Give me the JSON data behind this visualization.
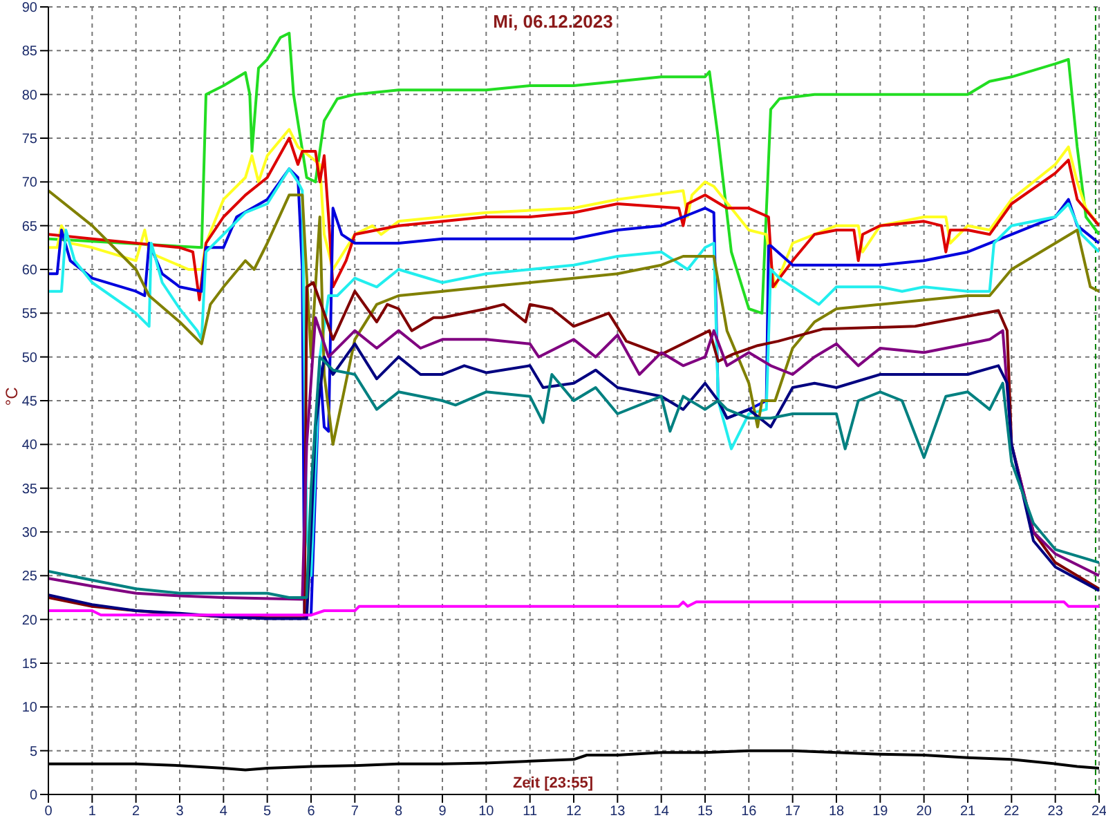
{
  "chart_data": {
    "type": "line",
    "title": "Mi, 06.12.2023",
    "xlabel": "Zeit [23:55]",
    "ylabel": "°C",
    "xlim": [
      0,
      24
    ],
    "ylim": [
      0,
      90
    ],
    "xticks": [
      0,
      1,
      2,
      3,
      4,
      5,
      6,
      7,
      8,
      9,
      10,
      11,
      12,
      13,
      14,
      15,
      16,
      17,
      18,
      19,
      20,
      21,
      22,
      23,
      24
    ],
    "yticks": [
      0,
      5,
      10,
      15,
      20,
      25,
      30,
      35,
      40,
      45,
      50,
      55,
      60,
      65,
      70,
      75,
      80,
      85,
      90
    ],
    "grid": true,
    "marker": "none",
    "line_style": "solid",
    "ref_lines": [
      {
        "axis": "x",
        "value": 23.92,
        "color": "#008000",
        "line_style": "dashed"
      }
    ],
    "series": [
      {
        "color": "#22dd22",
        "x": [
          0,
          3.5,
          3.6,
          4.0,
          4.5,
          4.6,
          4.65,
          4.8,
          5.0,
          5.3,
          5.5,
          5.6,
          5.9,
          6.1,
          6.3,
          6.6,
          7,
          8,
          9,
          10,
          11,
          12,
          13,
          14,
          15,
          15.1,
          15.3,
          15.6,
          16.0,
          16.3,
          16.5,
          16.7,
          17.5,
          18,
          19,
          20,
          21,
          21.5,
          22,
          23,
          23.3,
          23.5,
          23.7,
          24
        ],
        "values": [
          63.5,
          62.5,
          80,
          81,
          82.5,
          80,
          73.5,
          83,
          84,
          86.5,
          87,
          80,
          70.5,
          70,
          77,
          79.5,
          80,
          80.5,
          80.5,
          80.5,
          81,
          81,
          81.5,
          82,
          82,
          82.6,
          75,
          62,
          55.5,
          55,
          78.3,
          79.5,
          80,
          80,
          80,
          80,
          80,
          81.5,
          82,
          83.5,
          84,
          74,
          66,
          64
        ]
      },
      {
        "color": "#ffff22",
        "x": [
          0,
          0.2,
          0.3,
          0.5,
          1,
          2,
          2.2,
          2.3,
          2.5,
          3.2,
          3.5,
          3.6,
          4,
          4.5,
          4.65,
          4.8,
          5,
          5.5,
          5.7,
          6.2,
          6.3,
          6.5,
          7,
          7.4,
          7.6,
          8,
          10,
          12,
          13,
          14.5,
          14.6,
          14.7,
          15,
          15.2,
          16,
          16.4,
          16.6,
          17,
          17.5,
          18,
          18.5,
          18.6,
          19,
          20,
          20.5,
          20.6,
          21,
          21.5,
          22,
          22.5,
          23,
          23.3,
          23.5,
          23.7,
          24
        ],
        "values": [
          62.5,
          62.5,
          65,
          63,
          62.5,
          61,
          64.5,
          62,
          61.5,
          60,
          60,
          63,
          68,
          70.5,
          73,
          70,
          73,
          76,
          74,
          72,
          64,
          60,
          64,
          65,
          64,
          65.5,
          66.5,
          67,
          68,
          69,
          66,
          68.5,
          70,
          69.5,
          64.5,
          64,
          58,
          63,
          64,
          65,
          65,
          62,
          65,
          66,
          66,
          63,
          65,
          64.5,
          68,
          70,
          72,
          74,
          70,
          67,
          65
        ]
      },
      {
        "color": "#dd0000",
        "x": [
          0,
          1,
          2,
          3,
          3.3,
          3.45,
          3.6,
          4,
          4.5,
          5,
          5.5,
          5.7,
          5.8,
          6.1,
          6.2,
          6.3,
          6.4,
          6.5,
          6.8,
          7,
          8,
          10,
          11,
          12,
          13,
          14.4,
          14.5,
          14.6,
          15,
          15.5,
          16,
          16.45,
          16.55,
          17,
          17.5,
          18,
          18.4,
          18.5,
          18.6,
          19,
          20,
          20.4,
          20.5,
          20.6,
          21,
          21.5,
          22,
          23,
          23.3,
          23.5,
          24
        ],
        "values": [
          64,
          63.5,
          63,
          62.5,
          62,
          56.5,
          63,
          66,
          68.5,
          70.5,
          75,
          72,
          73.5,
          73.5,
          70,
          73,
          66,
          58,
          61,
          64,
          65,
          66,
          66,
          66.5,
          67.5,
          67,
          65,
          67.5,
          68.5,
          67,
          67,
          66,
          58,
          61,
          64,
          64.5,
          64.5,
          61,
          64,
          65,
          65.5,
          65,
          62,
          64.5,
          64.5,
          64,
          67.5,
          71,
          72.5,
          68,
          65
        ]
      },
      {
        "color": "#0000dd",
        "x": [
          0,
          0.2,
          0.3,
          0.5,
          1,
          2,
          2.2,
          2.3,
          2.6,
          3,
          3.5,
          3.6,
          4,
          4.3,
          5,
          5.5,
          5.7,
          5.8,
          5.85,
          6.0,
          6.1,
          6.2,
          6.3,
          6.4,
          6.5,
          6.7,
          7,
          8,
          9,
          10,
          12,
          13,
          14,
          14.5,
          15,
          15.2,
          15.3,
          15.5,
          16,
          16.4,
          16.45,
          16.5,
          17,
          19,
          20,
          21,
          22,
          22.5,
          23,
          23.3,
          23.5,
          24
        ],
        "values": [
          59.5,
          59.5,
          64.5,
          61,
          59,
          57.5,
          57,
          63,
          59.5,
          58,
          57.5,
          62.5,
          62.5,
          66,
          68,
          71.5,
          70.5,
          60,
          20.5,
          20.5,
          35,
          49,
          42,
          41.5,
          67,
          64,
          63,
          63,
          63.5,
          63.5,
          63.5,
          64.5,
          65,
          66,
          67,
          66.5,
          45,
          43,
          44,
          45,
          62.7,
          62.7,
          60.5,
          60.5,
          61,
          62,
          64,
          65,
          66,
          68,
          65,
          63
        ]
      },
      {
        "color": "#22eeee",
        "x": [
          0,
          0.3,
          0.4,
          0.6,
          1,
          2,
          2.3,
          2.35,
          2.6,
          3,
          3.4,
          3.5,
          3.6,
          4,
          4.5,
          5,
          5.5,
          5.7,
          5.8,
          5.9,
          6.0,
          6.2,
          6.4,
          6.6,
          7,
          7.5,
          8,
          9,
          10,
          11,
          12,
          13,
          14,
          14.6,
          15,
          15.2,
          15.3,
          15.6,
          16,
          16.4,
          16.5,
          16.7,
          17,
          17.6,
          18,
          19,
          19.5,
          20,
          21,
          21.5,
          21.6,
          22,
          23,
          23.3,
          23.6,
          24
        ],
        "values": [
          57.5,
          57.5,
          64.5,
          61,
          58.5,
          55,
          53.5,
          63,
          58.5,
          55.5,
          53,
          52,
          62,
          64,
          66.5,
          67.5,
          71.5,
          70,
          69,
          30,
          25,
          50,
          57,
          57,
          59,
          58,
          60,
          58.5,
          59.5,
          60,
          60.5,
          61.5,
          62,
          60,
          62.5,
          63,
          45,
          39.5,
          43.5,
          44,
          60,
          59,
          58,
          56,
          58,
          58,
          57.5,
          58,
          57.5,
          57.5,
          63,
          65,
          66,
          67.5,
          64,
          62
        ]
      },
      {
        "color": "#808000",
        "x": [
          0,
          1,
          2,
          2.3,
          3,
          3.5,
          3.7,
          4,
          4.5,
          4.7,
          5,
          5.5,
          5.8,
          6.0,
          6.1,
          6.2,
          6.3,
          6.5,
          7,
          7.5,
          8,
          9,
          10,
          12,
          13,
          14,
          14.5,
          15.2,
          15.5,
          16,
          16.2,
          16.3,
          16.6,
          17,
          17.5,
          18,
          19,
          20,
          21,
          21.5,
          22,
          23,
          23.5,
          23.8,
          24
        ],
        "values": [
          69,
          65,
          60,
          57,
          54,
          51.5,
          56,
          58,
          61,
          60,
          63,
          68.5,
          68.5,
          50,
          58,
          66,
          48,
          40,
          52,
          56,
          57,
          57.5,
          58,
          59,
          59.5,
          60.5,
          61.5,
          61.5,
          53,
          47,
          42,
          45,
          45,
          51,
          54,
          55.5,
          56,
          56.5,
          57,
          57,
          60,
          63,
          64.5,
          58,
          57.5
        ]
      },
      {
        "color": "#800000",
        "x": [
          0,
          1,
          2,
          3,
          4,
          5,
          5.85,
          5.9,
          6.05,
          6.3,
          6.5,
          7,
          7.5,
          7.74,
          8,
          8.3,
          8.8,
          9,
          10,
          10.4,
          10.9,
          11,
          11.5,
          12,
          12.8,
          13.2,
          14,
          15.1,
          15.3,
          15.63,
          16.2,
          16.67,
          17.7,
          19.8,
          21.7,
          21.9,
          22,
          22.5,
          23,
          24
        ],
        "values": [
          22.5,
          21.5,
          21,
          20.6,
          20.3,
          20.2,
          20.2,
          58,
          58.5,
          55,
          52,
          57.5,
          54,
          56,
          55.5,
          53,
          54.5,
          54.5,
          55.5,
          56,
          54,
          56,
          55.5,
          53.5,
          55,
          51.8,
          50.3,
          53,
          49.5,
          50.3,
          51.3,
          51.8,
          53.2,
          53.5,
          55.3,
          53,
          40,
          30,
          26.5,
          23.5
        ]
      },
      {
        "color": "#800080",
        "x": [
          0,
          1,
          2,
          3,
          4,
          5.8,
          5.9,
          6.1,
          6.4,
          7,
          7.5,
          8,
          8.5,
          9,
          10,
          11,
          11.2,
          12,
          12.5,
          13,
          13.5,
          14,
          14.5,
          15,
          15.2,
          15.5,
          16,
          16.5,
          17,
          17.5,
          18,
          18.5,
          19,
          20,
          21,
          21.5,
          21.8,
          22,
          22.5,
          23,
          24
        ],
        "values": [
          24.7,
          23.8,
          23,
          22.7,
          22.5,
          22.3,
          40,
          54.5,
          50,
          53,
          51,
          53,
          51,
          52,
          52,
          51.5,
          50,
          52,
          50,
          52.5,
          48,
          50.5,
          49,
          50,
          53,
          49,
          50.5,
          49,
          48,
          50,
          51.5,
          49,
          51,
          50.5,
          51.5,
          52,
          53,
          40,
          30,
          27.5,
          25
        ]
      },
      {
        "color": "#000080",
        "x": [
          0,
          1,
          2,
          3,
          4,
          5,
          5.9,
          6.0,
          6.1,
          6.3,
          6.5,
          7,
          7.5,
          8,
          8.5,
          9,
          9.5,
          10,
          11,
          11.3,
          12,
          12.5,
          13,
          14,
          14.5,
          15,
          15.3,
          15.5,
          16,
          16.5,
          17,
          17.5,
          18,
          19,
          20,
          21,
          21.7,
          21.9,
          22,
          22.5,
          23,
          24
        ],
        "values": [
          22.8,
          21.7,
          21,
          20.7,
          20.3,
          20.1,
          20.1,
          30,
          42,
          50,
          48,
          51.5,
          47.5,
          50,
          48,
          48,
          49,
          48.2,
          49,
          46.5,
          47,
          48.5,
          46.5,
          45.5,
          44,
          47,
          45,
          43,
          44,
          42,
          46.5,
          47,
          46.5,
          48,
          48,
          48,
          49,
          47,
          40,
          29,
          26,
          23.3
        ]
      },
      {
        "color": "#008080",
        "x": [
          0,
          1,
          2,
          3,
          5,
          5.5,
          5.9,
          6.0,
          6.2,
          6.5,
          7,
          7.5,
          8,
          9,
          9.3,
          10,
          11,
          11.3,
          11.5,
          12,
          12.5,
          13,
          14,
          14.2,
          14.5,
          15,
          15.3,
          15.5,
          16,
          16.5,
          17,
          18,
          18.2,
          18.5,
          19,
          19.5,
          20,
          20.5,
          21,
          21.5,
          21.8,
          22,
          22.5,
          23,
          24
        ],
        "values": [
          25.5,
          24.5,
          23.5,
          23,
          23,
          22.5,
          22.5,
          35,
          50,
          48.5,
          48,
          44,
          46,
          45,
          44.5,
          46,
          45.5,
          42.5,
          48,
          45,
          46.5,
          43.5,
          45.5,
          41.5,
          45.5,
          44,
          45,
          44,
          43,
          43,
          43.5,
          43.5,
          39.5,
          45,
          46,
          45,
          38.5,
          45.5,
          46,
          44,
          47,
          38,
          31,
          28,
          26.5
        ]
      },
      {
        "color": "#ff00ff",
        "x": [
          0,
          1,
          1.2,
          6,
          6.3,
          7,
          7.1,
          14.4,
          14.5,
          14.6,
          14.8,
          23.2,
          23.3,
          24
        ],
        "values": [
          21,
          21,
          20.5,
          20.5,
          21,
          21,
          21.5,
          21.5,
          22,
          21.5,
          22,
          22,
          21.5,
          21.5
        ]
      },
      {
        "color": "#000000",
        "x": [
          0,
          1,
          2,
          3,
          4,
          4.5,
          5,
          6,
          7,
          8,
          9,
          10,
          11,
          12,
          12.3,
          13,
          14,
          15,
          16,
          17,
          18,
          19,
          20,
          21,
          22,
          23,
          23.5,
          24
        ],
        "values": [
          3.5,
          3.5,
          3.5,
          3.3,
          3,
          2.8,
          3,
          3.2,
          3.3,
          3.5,
          3.5,
          3.6,
          3.8,
          4,
          4.5,
          4.5,
          4.8,
          4.8,
          5,
          5,
          4.8,
          4.6,
          4.5,
          4.2,
          4,
          3.5,
          3.2,
          3
        ]
      }
    ]
  }
}
